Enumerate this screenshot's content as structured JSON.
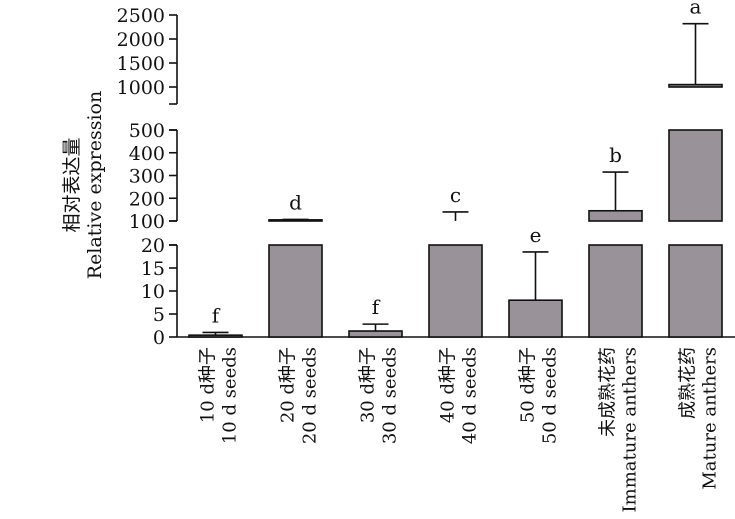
{
  "chart_data": {
    "type": "bar",
    "ylabel_cn": "相对表达量",
    "ylabel_en": "Relative expression",
    "axis_segments": [
      {
        "ticks": [
          0,
          5,
          10,
          15,
          20
        ],
        "range": [
          0,
          20
        ]
      },
      {
        "ticks": [
          100,
          200,
          300,
          400,
          500
        ],
        "range": [
          100,
          500
        ]
      },
      {
        "ticks": [
          1000,
          1500,
          2000,
          2500
        ],
        "range": [
          1000,
          2500
        ]
      }
    ],
    "categories": [
      {
        "cn": "10 d种子",
        "en": "10 d seeds"
      },
      {
        "cn": "20 d种子",
        "en": "20 d seeds"
      },
      {
        "cn": "30 d种子",
        "en": "30 d seeds"
      },
      {
        "cn": "40 d种子",
        "en": "40 d seeds"
      },
      {
        "cn": "50 d种子",
        "en": "50 d seeds"
      },
      {
        "cn": "未成熟花药",
        "en": "Immature anthers"
      },
      {
        "cn": "成熟花药",
        "en": "Mature anthers"
      }
    ],
    "values": [
      0.4,
      105,
      1.3,
      100,
      8,
      145,
      1050
    ],
    "error_upper": [
      1.0,
      107,
      2.8,
      140,
      18.5,
      315,
      2320
    ],
    "significance": [
      "f",
      "d",
      "f",
      "c",
      "e",
      "b",
      "a"
    ]
  }
}
